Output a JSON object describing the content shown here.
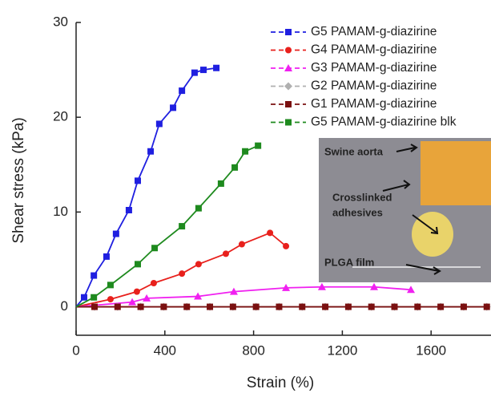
{
  "chart_data": {
    "type": "line",
    "xlabel": "Strain (%)",
    "ylabel": "Shear stress (kPa)",
    "xlim": [
      0,
      1870
    ],
    "ylim": [
      -3,
      30
    ],
    "xticks": [
      0,
      400,
      800,
      1200,
      1600
    ],
    "yticks": [
      0,
      10,
      20,
      30
    ],
    "legend": "top-right",
    "series": [
      {
        "name": "G5 PAMAM-g-diazirine",
        "color": "#1f1fe0",
        "marker": "square",
        "x": [
          0,
          36,
          80,
          137,
          180,
          238,
          278,
          336,
          375,
          437,
          477,
          534,
          574,
          632
        ],
        "values": [
          0,
          1.0,
          3.3,
          5.3,
          7.7,
          10.2,
          13.3,
          16.4,
          19.3,
          21.0,
          22.8,
          24.7,
          25.0,
          25.2
        ]
      },
      {
        "name": "G4 PAMAM-g-diazirine",
        "color": "#e8201c",
        "marker": "circle",
        "x": [
          0,
          155,
          274,
          350,
          477,
          552,
          675,
          747,
          874,
          946
        ],
        "values": [
          0,
          0.8,
          1.6,
          2.5,
          3.5,
          4.5,
          5.6,
          6.6,
          7.8,
          6.4
        ]
      },
      {
        "name": "G3 PAMAM-g-diazirine",
        "color": "#f020f0",
        "marker": "triangle",
        "x": [
          0,
          253,
          318,
          549,
          711,
          946,
          1108,
          1343,
          1509
        ],
        "values": [
          0,
          0.5,
          0.9,
          1.1,
          1.6,
          2.0,
          2.1,
          2.1,
          1.8
        ]
      },
      {
        "name": "G2 PAMAM-g-diazirine",
        "color": "#b0b0b0",
        "marker": "diamond",
        "x": [
          0,
          83,
          187,
          291,
          395,
          499,
          603,
          707,
          811,
          915,
          1019,
          1123,
          1227,
          1331,
          1435,
          1539,
          1643,
          1747,
          1851
        ],
        "values": [
          0,
          0,
          0,
          0,
          0,
          0,
          0,
          0,
          0,
          0,
          0,
          0,
          0,
          0,
          0,
          0,
          0,
          0,
          0
        ]
      },
      {
        "name": "G1 PAMAM-g-diazirine",
        "color": "#7a1010",
        "marker": "square",
        "x": [
          0,
          83,
          187,
          291,
          395,
          499,
          603,
          707,
          811,
          915,
          1019,
          1123,
          1227,
          1331,
          1435,
          1539,
          1643,
          1747,
          1851
        ],
        "values": [
          0,
          0,
          0,
          0,
          0,
          0,
          0,
          0,
          0,
          0,
          0,
          0,
          0,
          0,
          0,
          0,
          0,
          0,
          0
        ]
      },
      {
        "name": "G5 PAMAM-g-diazirine blk",
        "color": "#1e8a1e",
        "marker": "square",
        "x": [
          0,
          80,
          155,
          278,
          354,
          477,
          552,
          653,
          715,
          762,
          820
        ],
        "values": [
          0,
          1.0,
          2.3,
          4.5,
          6.2,
          8.5,
          10.4,
          13.0,
          14.7,
          16.4,
          17.0
        ]
      }
    ],
    "annotations": [
      "Swine aorta",
      "Crosslinked",
      "adhesives",
      "PLGA film"
    ]
  }
}
